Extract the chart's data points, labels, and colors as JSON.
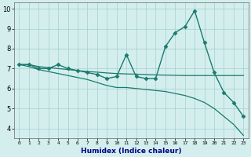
{
  "xlabel": "Humidex (Indice chaleur)",
  "x": [
    0,
    1,
    2,
    3,
    4,
    5,
    6,
    7,
    8,
    9,
    10,
    11,
    12,
    13,
    14,
    15,
    16,
    17,
    18,
    19,
    20,
    21,
    22,
    23
  ],
  "y_main": [
    7.2,
    7.2,
    7.0,
    7.0,
    7.2,
    7.0,
    6.9,
    6.8,
    6.7,
    6.5,
    6.6,
    7.7,
    6.6,
    6.5,
    6.5,
    8.1,
    8.8,
    9.1,
    9.9,
    8.3,
    6.8,
    5.8,
    5.3,
    4.6
  ],
  "y_trend": [
    7.2,
    7.2,
    7.1,
    7.05,
    7.0,
    6.95,
    6.9,
    6.85,
    6.82,
    6.78,
    6.75,
    6.73,
    6.72,
    6.7,
    6.68,
    6.67,
    6.66,
    6.65,
    6.65,
    6.65,
    6.65,
    6.65,
    6.65,
    6.65
  ],
  "y_low": [
    7.2,
    7.1,
    6.95,
    6.85,
    6.75,
    6.65,
    6.55,
    6.45,
    6.3,
    6.15,
    6.05,
    6.05,
    6.0,
    5.95,
    5.9,
    5.85,
    5.75,
    5.65,
    5.5,
    5.3,
    5.0,
    4.6,
    4.2,
    3.65
  ],
  "color": "#1a7a6e",
  "bg_color": "#d4eeee",
  "grid_color": "#aad4d4",
  "ylim": [
    3.5,
    10.3
  ],
  "xlim": [
    -0.5,
    23.5
  ],
  "yticks": [
    4,
    5,
    6,
    7,
    8,
    9,
    10
  ],
  "xtick_labels": [
    "0",
    "1",
    "2",
    "3",
    "4",
    "5",
    "6",
    "7",
    "8",
    "9",
    "10",
    "11",
    "12",
    "13",
    "14",
    "15",
    "16",
    "17",
    "18",
    "19",
    "20",
    "21",
    "22",
    "23"
  ]
}
